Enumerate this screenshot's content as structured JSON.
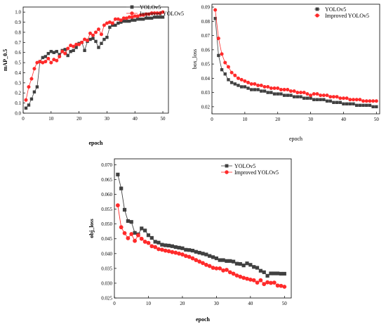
{
  "chart_data": [
    {
      "type": "line",
      "xlabel": "epoch",
      "ylabel": "mAP_0.5",
      "xlim": [
        0,
        52
      ],
      "ylim": [
        0.0,
        1.05
      ],
      "xticks": [
        0,
        10,
        20,
        30,
        40,
        50
      ],
      "yticks": [
        0.0,
        0.1,
        0.2,
        0.3,
        0.4,
        0.5,
        0.6,
        0.7,
        0.8,
        0.9,
        1.0
      ],
      "ytick_format": 1,
      "label_bold": true,
      "grid": false,
      "legend": "top-right",
      "x": [
        1,
        2,
        3,
        4,
        5,
        6,
        7,
        8,
        9,
        10,
        11,
        12,
        13,
        14,
        15,
        16,
        17,
        18,
        19,
        20,
        21,
        22,
        23,
        24,
        25,
        26,
        27,
        28,
        29,
        30,
        31,
        32,
        33,
        34,
        35,
        36,
        37,
        38,
        39,
        40,
        41,
        42,
        43,
        44,
        45,
        46,
        47,
        48,
        49,
        50
      ],
      "series": [
        {
          "name": "YOLOv5",
          "marker": "square",
          "color": "#404040",
          "values": [
            0.05,
            0.08,
            0.14,
            0.21,
            0.26,
            0.51,
            0.55,
            0.56,
            0.59,
            0.61,
            0.6,
            0.61,
            0.58,
            0.62,
            0.63,
            0.57,
            0.61,
            0.62,
            0.65,
            0.69,
            0.7,
            0.62,
            0.71,
            0.73,
            0.74,
            0.71,
            0.65,
            0.69,
            0.73,
            0.75,
            0.85,
            0.87,
            0.87,
            0.89,
            0.9,
            0.91,
            0.91,
            0.91,
            0.92,
            0.92,
            0.93,
            0.93,
            0.93,
            0.94,
            0.94,
            0.94,
            0.95,
            0.95,
            0.95,
            0.95
          ]
        },
        {
          "name": "Improved YOLOv5",
          "marker": "circle",
          "color": "#ff2a2a",
          "values": [
            0.13,
            0.26,
            0.34,
            0.44,
            0.5,
            0.51,
            0.5,
            0.51,
            0.54,
            0.5,
            0.53,
            0.52,
            0.56,
            0.61,
            0.59,
            0.64,
            0.67,
            0.66,
            0.68,
            0.68,
            0.7,
            0.73,
            0.72,
            0.79,
            0.77,
            0.8,
            0.83,
            0.78,
            0.87,
            0.89,
            0.9,
            0.89,
            0.93,
            0.93,
            0.92,
            0.94,
            0.94,
            0.95,
            0.95,
            0.96,
            0.96,
            0.97,
            0.97,
            0.98,
            0.98,
            0.99,
            0.99,
            0.99,
            0.99,
            1.0
          ]
        }
      ]
    },
    {
      "type": "line",
      "xlabel": "epoch",
      "ylabel": "box_loss",
      "xlim": [
        0,
        51
      ],
      "ylim": [
        0.015,
        0.092
      ],
      "xticks": [
        0,
        10,
        20,
        30,
        40,
        50
      ],
      "yticks": [
        0.02,
        0.03,
        0.04,
        0.05,
        0.06,
        0.07,
        0.08,
        0.09
      ],
      "ytick_format": 2,
      "label_bold": false,
      "grid": false,
      "legend": "top-right",
      "x": [
        1,
        2,
        3,
        4,
        5,
        6,
        7,
        8,
        9,
        10,
        11,
        12,
        13,
        14,
        15,
        16,
        17,
        18,
        19,
        20,
        21,
        22,
        23,
        24,
        25,
        26,
        27,
        28,
        29,
        30,
        31,
        32,
        33,
        34,
        35,
        36,
        37,
        38,
        39,
        40,
        41,
        42,
        43,
        44,
        45,
        46,
        47,
        48,
        49,
        50
      ],
      "series": [
        {
          "name": "YOLOv5",
          "marker": "square",
          "color": "#404040",
          "values": [
            0.082,
            0.056,
            0.046,
            0.043,
            0.039,
            0.037,
            0.036,
            0.035,
            0.034,
            0.034,
            0.033,
            0.032,
            0.032,
            0.032,
            0.031,
            0.031,
            0.03,
            0.03,
            0.029,
            0.029,
            0.029,
            0.028,
            0.028,
            0.028,
            0.027,
            0.027,
            0.027,
            0.026,
            0.026,
            0.026,
            0.025,
            0.025,
            0.025,
            0.025,
            0.024,
            0.024,
            0.023,
            0.023,
            0.023,
            0.022,
            0.022,
            0.022,
            0.022,
            0.021,
            0.021,
            0.021,
            0.021,
            0.021,
            0.02,
            0.02
          ]
        },
        {
          "name": "Improved YOLOv5",
          "marker": "circle",
          "color": "#ff2a2a",
          "values": [
            0.088,
            0.068,
            0.057,
            0.051,
            0.048,
            0.044,
            0.042,
            0.04,
            0.039,
            0.038,
            0.037,
            0.036,
            0.036,
            0.035,
            0.035,
            0.034,
            0.034,
            0.033,
            0.033,
            0.033,
            0.032,
            0.032,
            0.032,
            0.031,
            0.031,
            0.03,
            0.03,
            0.03,
            0.029,
            0.028,
            0.029,
            0.029,
            0.028,
            0.028,
            0.028,
            0.027,
            0.027,
            0.027,
            0.026,
            0.026,
            0.026,
            0.025,
            0.025,
            0.025,
            0.025,
            0.024,
            0.024,
            0.024,
            0.024,
            0.024
          ]
        }
      ]
    },
    {
      "type": "line",
      "xlabel": "epoch",
      "ylabel": "obj_loss",
      "xlim": [
        0,
        52
      ],
      "ylim": [
        0.025,
        0.072
      ],
      "xticks": [
        0,
        10,
        20,
        30,
        40,
        50
      ],
      "yticks": [
        0.025,
        0.03,
        0.035,
        0.04,
        0.045,
        0.05,
        0.055,
        0.06,
        0.065,
        0.07
      ],
      "ytick_format": 3,
      "label_bold": true,
      "grid": false,
      "legend": "top-right",
      "x": [
        1,
        2,
        3,
        4,
        5,
        6,
        7,
        8,
        9,
        10,
        11,
        12,
        13,
        14,
        15,
        16,
        17,
        18,
        19,
        20,
        21,
        22,
        23,
        24,
        25,
        26,
        27,
        28,
        29,
        30,
        31,
        32,
        33,
        34,
        35,
        36,
        37,
        38,
        39,
        40,
        41,
        42,
        43,
        44,
        45,
        46,
        47,
        48,
        49,
        50
      ],
      "series": [
        {
          "name": "YOLOv5",
          "marker": "square",
          "color": "#404040",
          "values": [
            0.0667,
            0.062,
            0.0548,
            0.051,
            0.0507,
            0.047,
            0.0465,
            0.0485,
            0.0478,
            0.0462,
            0.0453,
            0.044,
            0.0437,
            0.043,
            0.0428,
            0.0427,
            0.0425,
            0.0422,
            0.042,
            0.0418,
            0.0413,
            0.0412,
            0.041,
            0.0406,
            0.0403,
            0.04,
            0.0397,
            0.0392,
            0.0388,
            0.0384,
            0.0378,
            0.0378,
            0.0375,
            0.0375,
            0.0373,
            0.0366,
            0.0365,
            0.036,
            0.0367,
            0.0362,
            0.0355,
            0.0352,
            0.0342,
            0.0337,
            0.0325,
            0.0333,
            0.0333,
            0.0333,
            0.0332,
            0.0332
          ]
        },
        {
          "name": "Improved YOLOv5",
          "marker": "circle",
          "color": "#ff2a2a",
          "values": [
            0.0563,
            0.0489,
            0.0469,
            0.0452,
            0.0466,
            0.0443,
            0.0462,
            0.045,
            0.044,
            0.0436,
            0.0425,
            0.0422,
            0.0415,
            0.0413,
            0.041,
            0.0408,
            0.0405,
            0.0403,
            0.04,
            0.0397,
            0.0392,
            0.0389,
            0.0384,
            0.0378,
            0.0373,
            0.0368,
            0.0362,
            0.0358,
            0.0352,
            0.035,
            0.035,
            0.0343,
            0.0345,
            0.0337,
            0.0332,
            0.0326,
            0.0322,
            0.0318,
            0.0315,
            0.0312,
            0.031,
            0.0302,
            0.031,
            0.0297,
            0.0303,
            0.0301,
            0.0302,
            0.0292,
            0.0291,
            0.0288
          ]
        }
      ]
    }
  ]
}
